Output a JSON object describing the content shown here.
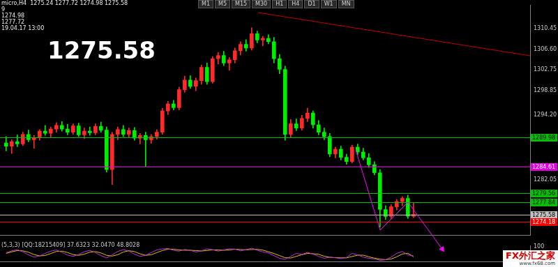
{
  "chart_data": [
    {
      "type": "candlestick",
      "annotations": {
        "info": [
          "micro,H4  1275.24 1277.72 1274.98 1275.58",
          "9",
          "1274.98",
          "1277.72",
          "19.04.17 13:00"
        ],
        "price": "1275.58",
        "timeframes": [
          "M1",
          "M5",
          "M15",
          "M30",
          "H1",
          "H4",
          "D1",
          "W1",
          "MN"
        ],
        "watermark": [
          "FX外汇之家",
          "www.fx68.com"
        ]
      },
      "x": [
        0,
        1,
        2,
        3,
        4,
        5,
        6,
        7,
        8,
        9,
        10,
        11,
        12,
        13,
        14,
        15,
        16,
        17,
        18,
        19,
        20,
        21,
        22,
        23,
        24,
        25,
        26,
        27,
        28,
        29,
        30,
        31,
        32,
        33,
        34,
        35,
        36,
        37,
        38,
        39,
        40,
        41,
        42,
        43,
        44,
        45,
        46,
        47,
        48,
        49,
        50,
        51,
        52,
        53,
        54,
        55,
        56,
        57,
        58,
        59,
        60,
        61,
        62,
        63,
        64,
        65,
        66,
        67,
        68,
        69,
        70,
        71,
        72,
        73
      ],
      "open": [
        1289.0,
        1288.4,
        1289.2,
        1288.8,
        1290.6,
        1289.6,
        1290.0,
        1291.2,
        1290.8,
        1291.6,
        1292.3,
        1291.6,
        1291.0,
        1292.2,
        1290.5,
        1291.2,
        1290.9,
        1292.1,
        1291.4,
        1284.0,
        1290.6,
        1291.5,
        1290.6,
        1291.3,
        1289.9,
        1290.4,
        1289.6,
        1290.2,
        1291.0,
        1295.0,
        1296.3,
        1295.6,
        1299.0,
        1300.8,
        1299.6,
        1300.7,
        1303.2,
        1300.5,
        1304.8,
        1305.4,
        1304.0,
        1304.6,
        1306.3,
        1307.5,
        1306.8,
        1309.5,
        1308.3,
        1308.6,
        1308.0,
        1304.8,
        1302.8,
        1290.6,
        1292.6,
        1291.8,
        1293.6,
        1294.6,
        1292.4,
        1291.0,
        1290.2,
        1286.9,
        1287.8,
        1286.3,
        1285.5,
        1288.2,
        1287.3,
        1286.2,
        1284.9,
        1283.4,
        1276.5,
        1275.2,
        1277.0,
        1278.0,
        1278.6,
        1275.24
      ],
      "high": [
        1290.2,
        1289.6,
        1290.5,
        1291.0,
        1291.4,
        1290.4,
        1291.5,
        1292.3,
        1292.0,
        1292.8,
        1293.0,
        1292.5,
        1292.6,
        1292.7,
        1291.8,
        1292.0,
        1292.6,
        1292.9,
        1292.0,
        1291.0,
        1292.0,
        1292.3,
        1291.8,
        1291.9,
        1290.8,
        1291.0,
        1290.6,
        1291.5,
        1295.5,
        1296.8,
        1297.0,
        1299.5,
        1301.5,
        1301.6,
        1301.2,
        1303.6,
        1304.0,
        1305.2,
        1306.0,
        1306.2,
        1305.0,
        1306.8,
        1308.0,
        1308.4,
        1310.6,
        1310.0,
        1309.0,
        1309.3,
        1308.8,
        1305.6,
        1303.4,
        1293.4,
        1293.5,
        1294.2,
        1295.5,
        1295.0,
        1293.2,
        1291.8,
        1290.8,
        1288.2,
        1288.4,
        1286.9,
        1288.6,
        1288.8,
        1288.0,
        1287.0,
        1285.5,
        1284.0,
        1277.2,
        1277.4,
        1278.4,
        1278.9,
        1279.2,
        1277.72
      ],
      "low": [
        1287.5,
        1287.0,
        1288.3,
        1288.5,
        1289.2,
        1288.0,
        1289.5,
        1290.4,
        1290.1,
        1291.0,
        1291.2,
        1290.5,
        1290.6,
        1290.2,
        1289.8,
        1290.4,
        1290.5,
        1291.0,
        1283.5,
        1281.2,
        1289.6,
        1290.2,
        1290.0,
        1289.5,
        1288.8,
        1284.5,
        1288.9,
        1289.7,
        1290.6,
        1294.3,
        1295.2,
        1295.2,
        1298.5,
        1299.2,
        1298.8,
        1300.0,
        1300.0,
        1300.2,
        1303.8,
        1303.5,
        1302.6,
        1304.0,
        1305.5,
        1306.2,
        1306.4,
        1307.8,
        1307.2,
        1307.6,
        1304.0,
        1302.0,
        1289.5,
        1290.0,
        1291.3,
        1291.4,
        1293.0,
        1291.8,
        1290.5,
        1289.6,
        1286.4,
        1286.2,
        1285.8,
        1285.0,
        1285.2,
        1286.8,
        1285.8,
        1284.4,
        1283.0,
        1273.2,
        1274.6,
        1274.8,
        1276.4,
        1277.2,
        1274.8,
        1274.98
      ],
      "close": [
        1288.4,
        1289.2,
        1288.8,
        1290.6,
        1289.6,
        1290.0,
        1291.2,
        1290.8,
        1291.6,
        1292.3,
        1291.6,
        1291.0,
        1292.2,
        1290.5,
        1291.2,
        1290.9,
        1292.1,
        1291.4,
        1284.0,
        1290.6,
        1291.5,
        1290.6,
        1291.3,
        1289.9,
        1290.4,
        1289.6,
        1290.2,
        1291.0,
        1295.0,
        1296.3,
        1295.6,
        1299.0,
        1300.8,
        1299.6,
        1300.7,
        1303.2,
        1300.5,
        1304.8,
        1305.4,
        1304.0,
        1304.6,
        1306.3,
        1307.5,
        1306.8,
        1309.5,
        1308.3,
        1308.6,
        1308.0,
        1304.8,
        1302.8,
        1290.6,
        1292.6,
        1291.8,
        1293.6,
        1294.6,
        1292.4,
        1291.0,
        1290.2,
        1286.9,
        1287.8,
        1286.3,
        1285.5,
        1288.2,
        1287.3,
        1286.2,
        1284.9,
        1283.4,
        1276.5,
        1275.2,
        1277.0,
        1278.0,
        1278.6,
        1275.24,
        1275.58
      ],
      "xlim": [
        -1.1,
        93.9
      ],
      "ylim": [
        1271.7,
        1314.8
      ],
      "yticks": [
        1310.45,
        {
          "value": 1306.6,
          "label": "1306.60"
        },
        1302.75,
        1298.85,
        {
          "value": 1294.2,
          "label": "1294.20"
        },
        1282.05
      ],
      "levels": [
        {
          "value": 1289.98,
          "color": "#00c000"
        },
        {
          "value": 1284.61,
          "color": "#e000e0"
        },
        {
          "value": 1279.56,
          "color": "#00c000"
        },
        {
          "value": 1277.84,
          "color": "#00c000"
        },
        {
          "value": 1275.58,
          "color": "#c0c0c0"
        },
        {
          "value": 1274.18,
          "color": "#ff0000"
        }
      ],
      "grid": false,
      "tick_labels": "y"
    },
    {
      "type": "line",
      "title": "(5,3,3) [QQ:18215409] 37.6323 32.0470 48.8028",
      "x": [
        0,
        1,
        2,
        3,
        4,
        5,
        6,
        7,
        8,
        9,
        10,
        11,
        12,
        13,
        14,
        15,
        16,
        17,
        18,
        19,
        20,
        21,
        22,
        23,
        24,
        25,
        26,
        27,
        28,
        29,
        30,
        31,
        32,
        33,
        34,
        35,
        36,
        37,
        38,
        39,
        40,
        41,
        42,
        43,
        44,
        45,
        46,
        47,
        48,
        49,
        50,
        51,
        52,
        53,
        54,
        55,
        56,
        57,
        58,
        59,
        60,
        61,
        62,
        63,
        64,
        65,
        66,
        67,
        68,
        69,
        70,
        71,
        72,
        73
      ],
      "series": [
        {
          "color": "#c030e0",
          "values": [
            60,
            72,
            80,
            65,
            45,
            30,
            38,
            55,
            70,
            78,
            62,
            44,
            35,
            48,
            66,
            75,
            60,
            40,
            25,
            45,
            68,
            80,
            70,
            50,
            35,
            42,
            60,
            78,
            85,
            88,
            75,
            70,
            82,
            76,
            64,
            72,
            85,
            80,
            70,
            78,
            86,
            84,
            72,
            80,
            90,
            76,
            65,
            58,
            40,
            22,
            15,
            35,
            55,
            48,
            62,
            50,
            35,
            22,
            30,
            26,
            20,
            28,
            55,
            45,
            30,
            22,
            18,
            8,
            12,
            30,
            55,
            68,
            45,
            37.63
          ]
        },
        {
          "color": "#e0c000",
          "values": [
            55,
            65,
            74,
            72,
            63,
            47,
            38,
            41,
            54,
            68,
            70,
            61,
            47,
            42,
            50,
            63,
            67,
            58,
            42,
            37,
            46,
            64,
            73,
            67,
            52,
            42,
            46,
            60,
            74,
            84,
            83,
            78,
            76,
            76,
            74,
            71,
            74,
            79,
            78,
            76,
            78,
            83,
            81,
            79,
            81,
            82,
            77,
            66,
            54,
            40,
            26,
            24,
            35,
            46,
            55,
            53,
            49,
            36,
            29,
            26,
            25,
            25,
            34,
            43,
            43,
            32,
            23,
            16,
            13,
            17,
            32,
            51,
            56,
            32.05
          ]
        }
      ],
      "xlim": [
        -1.1,
        93.9
      ],
      "ylim": [
        0,
        105
      ],
      "yticks": [
        100
      ],
      "grid": false,
      "tick_labels": "y"
    }
  ]
}
